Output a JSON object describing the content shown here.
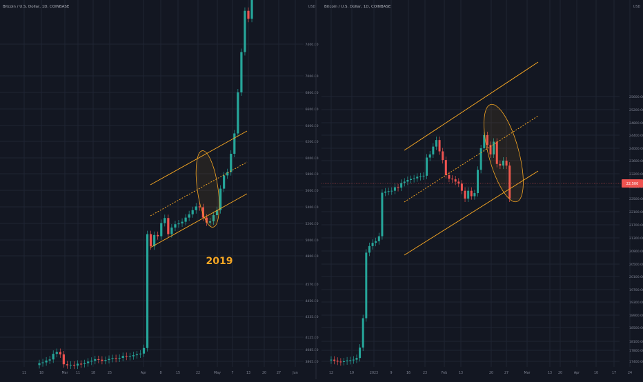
{
  "colors": {
    "background": "#131722",
    "grid": "#1f2433",
    "axis_text": "#7f8493",
    "up": "#26a69a",
    "down": "#ef5350",
    "channel": "#f5a623",
    "price_line": "#ef5350"
  },
  "chart_data": [
    {
      "type": "candlestick",
      "title": "Bitcoin / U.S. Dollar, 1D, COINBASE",
      "currency": "USD",
      "annotation": "2019",
      "y_ticks": [
        3865.0,
        4085.0,
        4125.0,
        4335.0,
        4450.0,
        4570.0,
        4800.0,
        5000.0,
        5200.0,
        5400.0,
        5600.0,
        5800.0,
        6000.0,
        6200.0,
        6400.0,
        6600.0,
        6800.0,
        7000.0,
        7400.0
      ],
      "x_ticks": [
        "11",
        "18",
        "Mar",
        "11",
        "18",
        "25",
        "Apr",
        "8",
        "15",
        "22",
        "May",
        "7",
        "13",
        "20",
        "27",
        "Jun"
      ],
      "candles_open": [
        3795,
        3830,
        3845,
        3880,
        3900,
        4005,
        4040,
        3995,
        3810,
        3790,
        3800,
        3785,
        3820,
        3815,
        3830,
        3860,
        3875,
        3905,
        3895,
        3875,
        3890,
        3910,
        3925,
        3920,
        3930,
        3965,
        3955,
        3960,
        3980,
        3995,
        4010,
        4090,
        5070,
        4920,
        5060,
        5045,
        5205,
        5265,
        5070,
        5150,
        5190,
        5200,
        5220,
        5270,
        5310,
        5360,
        5405,
        5395,
        5270,
        5210,
        5225,
        5300,
        5360,
        5620,
        5780,
        5820,
        6050,
        6300,
        6800,
        7300,
        7820,
        7720
      ],
      "candles_close": [
        3830,
        3845,
        3880,
        3900,
        4005,
        4040,
        3995,
        3810,
        3790,
        3800,
        3785,
        3820,
        3815,
        3830,
        3860,
        3875,
        3905,
        3895,
        3875,
        3890,
        3910,
        3925,
        3920,
        3930,
        3965,
        3955,
        3960,
        3980,
        3995,
        4010,
        4090,
        5070,
        4920,
        5060,
        5045,
        5205,
        5265,
        5070,
        5150,
        5190,
        5200,
        5220,
        5270,
        5310,
        5360,
        5405,
        5395,
        5270,
        5210,
        5225,
        5300,
        5360,
        5620,
        5780,
        5820,
        6050,
        6300,
        6800,
        7300,
        7820,
        7720,
        7960
      ],
      "channel": {
        "upper": [
          [
            5375,
            5005
          ],
          [
            5375,
            5820
          ]
        ],
        "middle": [
          [
            5375,
            4915
          ],
          [
            5375,
            5730
          ]
        ],
        "lower": [
          [
            5375,
            4820
          ],
          [
            5375,
            5645
          ]
        ]
      }
    },
    {
      "type": "candlestick",
      "title": "Bitcoin / U.S. Dollar, 1D, COINBASE",
      "currency": "USD",
      "last_price_label": "22,500",
      "y_ticks": [
        17400.0,
        17800.0,
        18100.0,
        18500.0,
        18900.0,
        19300.0,
        19700.0,
        20100.0,
        20500.0,
        20900.0,
        21300.0,
        21700.0,
        22100.0,
        22500.0,
        22800.0,
        23200.0,
        23600.0,
        24000.0,
        24400.0,
        24800.0,
        25200.0,
        25600.0
      ],
      "x_ticks": [
        "12",
        "19",
        "2023",
        "9",
        "16",
        "23",
        "Feb",
        "13",
        "20",
        "27",
        "Mar",
        "13",
        "20",
        "Apr",
        "10",
        "17",
        "24"
      ],
      "candles_open": [
        17450,
        17460,
        17420,
        17390,
        17380,
        17400,
        17430,
        17440,
        17460,
        17520,
        17890,
        18800,
        20850,
        21050,
        21150,
        21200,
        21350,
        22650,
        22680,
        22690,
        22700,
        22790,
        22780,
        22920,
        22960,
        23010,
        23040,
        23060,
        23110,
        23120,
        23140,
        23700,
        23800,
        24050,
        24250,
        23900,
        23620,
        23160,
        23050,
        23030,
        22960,
        22900,
        22700,
        22500,
        22700,
        22560,
        22640,
        23320,
        24000,
        24400,
        24100,
        23800,
        24200,
        23500,
        23450,
        23600,
        23450
      ],
      "candles_close": [
        17460,
        17420,
        17390,
        17380,
        17400,
        17430,
        17440,
        17460,
        17520,
        17890,
        18800,
        20850,
        21050,
        21150,
        21200,
        21350,
        22650,
        22680,
        22690,
        22700,
        22790,
        22780,
        22920,
        22960,
        23010,
        23040,
        23060,
        23110,
        23120,
        23140,
        23700,
        23800,
        24050,
        24250,
        23900,
        23620,
        23160,
        23050,
        23030,
        22960,
        22900,
        22700,
        22500,
        22700,
        22560,
        22640,
        23320,
        24000,
        24400,
        24100,
        23800,
        24200,
        23500,
        23450,
        23600,
        23450,
        22500
      ],
      "channel": {
        "upper": [
          [
            5375,
            23750
          ],
          [
            5375,
            25550
          ]
        ],
        "middle": [
          [
            5375,
            22500
          ],
          [
            5375,
            24300
          ]
        ],
        "lower": [
          [
            5375,
            21150
          ],
          [
            5375,
            22950
          ]
        ]
      }
    }
  ]
}
